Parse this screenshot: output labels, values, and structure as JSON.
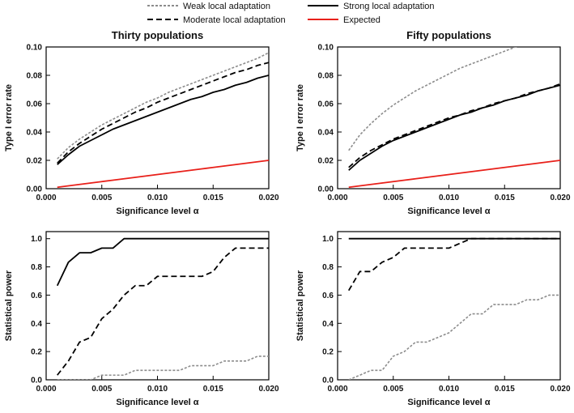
{
  "legend": {
    "position": "top",
    "entries": [
      {
        "label": "Weak local adaptation",
        "color": "#8c8c8c",
        "dash": "dotted"
      },
      {
        "label": "Strong local adaptation",
        "color": "#000000",
        "dash": "solid"
      },
      {
        "label": "Moderate local adaptation",
        "color": "#000000",
        "dash": "dashed"
      },
      {
        "label": "Expected",
        "color": "#e8201a",
        "dash": "solid"
      }
    ]
  },
  "chart_data": [
    {
      "type": "line",
      "title": "Thirty populations",
      "xlabel": "Significance level α",
      "ylabel": "Type I error rate",
      "xlim": [
        0,
        0.02
      ],
      "ylim": [
        0,
        0.1
      ],
      "xticks": [
        "0.000",
        "0.005",
        "0.010",
        "0.015",
        "0.020"
      ],
      "yticks": [
        "0.00",
        "0.02",
        "0.04",
        "0.06",
        "0.08",
        "0.10"
      ],
      "x": [
        0.001,
        0.002,
        0.003,
        0.004,
        0.005,
        0.006,
        0.007,
        0.008,
        0.009,
        0.01,
        0.011,
        0.012,
        0.013,
        0.014,
        0.015,
        0.016,
        0.017,
        0.018,
        0.019,
        0.02
      ],
      "series": [
        {
          "name": "Weak local adaptation",
          "values": [
            0.021,
            0.029,
            0.035,
            0.04,
            0.045,
            0.049,
            0.053,
            0.057,
            0.061,
            0.064,
            0.068,
            0.071,
            0.074,
            0.077,
            0.08,
            0.083,
            0.086,
            0.089,
            0.092,
            0.096
          ]
        },
        {
          "name": "Moderate local adaptation",
          "values": [
            0.018,
            0.026,
            0.032,
            0.037,
            0.042,
            0.046,
            0.05,
            0.054,
            0.057,
            0.061,
            0.064,
            0.067,
            0.07,
            0.073,
            0.076,
            0.079,
            0.082,
            0.084,
            0.087,
            0.089
          ]
        },
        {
          "name": "Strong local adaptation",
          "values": [
            0.017,
            0.024,
            0.03,
            0.034,
            0.038,
            0.042,
            0.045,
            0.048,
            0.051,
            0.054,
            0.057,
            0.06,
            0.063,
            0.065,
            0.068,
            0.07,
            0.073,
            0.075,
            0.078,
            0.08
          ]
        },
        {
          "name": "Expected",
          "values": [
            0.001,
            0.002,
            0.003,
            0.004,
            0.005,
            0.006,
            0.007,
            0.008,
            0.009,
            0.01,
            0.011,
            0.012,
            0.013,
            0.014,
            0.015,
            0.016,
            0.017,
            0.018,
            0.019,
            0.02
          ]
        }
      ]
    },
    {
      "type": "line",
      "title": "Fifty populations",
      "xlabel": "Significance level α",
      "ylabel": "Type I error rate",
      "xlim": [
        0,
        0.02
      ],
      "ylim": [
        0,
        0.1
      ],
      "xticks": [
        "0.000",
        "0.005",
        "0.010",
        "0.015",
        "0.020"
      ],
      "yticks": [
        "0.00",
        "0.02",
        "0.04",
        "0.06",
        "0.08",
        "0.10"
      ],
      "x": [
        0.001,
        0.002,
        0.003,
        0.004,
        0.005,
        0.006,
        0.007,
        0.008,
        0.009,
        0.01,
        0.011,
        0.012,
        0.013,
        0.014,
        0.015,
        0.016,
        0.017,
        0.018,
        0.019,
        0.02
      ],
      "series": [
        {
          "name": "Weak local adaptation",
          "values": [
            0.027,
            0.038,
            0.046,
            0.053,
            0.059,
            0.064,
            0.069,
            0.073,
            0.077,
            0.081,
            0.085,
            0.088,
            0.091,
            0.094,
            0.097,
            0.1,
            0.103,
            0.106,
            0.108,
            0.111
          ]
        },
        {
          "name": "Moderate local adaptation",
          "values": [
            0.015,
            0.022,
            0.027,
            0.031,
            0.035,
            0.038,
            0.041,
            0.044,
            0.047,
            0.05,
            0.052,
            0.055,
            0.057,
            0.06,
            0.062,
            0.064,
            0.067,
            0.069,
            0.071,
            0.074
          ]
        },
        {
          "name": "Strong local adaptation",
          "values": [
            0.013,
            0.02,
            0.025,
            0.03,
            0.034,
            0.037,
            0.04,
            0.043,
            0.046,
            0.049,
            0.052,
            0.054,
            0.057,
            0.059,
            0.062,
            0.064,
            0.066,
            0.069,
            0.071,
            0.073
          ]
        },
        {
          "name": "Expected",
          "values": [
            0.001,
            0.002,
            0.003,
            0.004,
            0.005,
            0.006,
            0.007,
            0.008,
            0.009,
            0.01,
            0.011,
            0.012,
            0.013,
            0.014,
            0.015,
            0.016,
            0.017,
            0.018,
            0.019,
            0.02
          ]
        }
      ]
    },
    {
      "type": "line",
      "title": "",
      "xlabel": "Significance level α",
      "ylabel": "Statistical power",
      "xlim": [
        0,
        0.02
      ],
      "ylim": [
        0,
        1.05
      ],
      "xticks": [
        "0.000",
        "0.005",
        "0.010",
        "0.015",
        "0.020"
      ],
      "yticks": [
        "0.0",
        "0.2",
        "0.4",
        "0.6",
        "0.8",
        "1.0"
      ],
      "x": [
        0.001,
        0.002,
        0.003,
        0.004,
        0.005,
        0.006,
        0.007,
        0.008,
        0.009,
        0.01,
        0.011,
        0.012,
        0.013,
        0.014,
        0.015,
        0.016,
        0.017,
        0.018,
        0.019,
        0.02
      ],
      "series": [
        {
          "name": "Weak local adaptation",
          "values": [
            0.0,
            0.0,
            0.0,
            0.0,
            0.033,
            0.033,
            0.033,
            0.067,
            0.067,
            0.067,
            0.067,
            0.067,
            0.1,
            0.1,
            0.1,
            0.133,
            0.133,
            0.133,
            0.167,
            0.167
          ]
        },
        {
          "name": "Moderate local adaptation",
          "values": [
            0.033,
            0.133,
            0.267,
            0.3,
            0.433,
            0.5,
            0.6,
            0.667,
            0.667,
            0.733,
            0.733,
            0.733,
            0.733,
            0.733,
            0.767,
            0.867,
            0.933,
            0.933,
            0.933,
            0.933
          ]
        },
        {
          "name": "Strong local adaptation",
          "values": [
            0.667,
            0.833,
            0.9,
            0.9,
            0.933,
            0.933,
            1.0,
            1.0,
            1.0,
            1.0,
            1.0,
            1.0,
            1.0,
            1.0,
            1.0,
            1.0,
            1.0,
            1.0,
            1.0,
            1.0
          ]
        }
      ]
    },
    {
      "type": "line",
      "title": "",
      "xlabel": "Significance level α",
      "ylabel": "Statistical power",
      "xlim": [
        0,
        0.02
      ],
      "ylim": [
        0,
        1.05
      ],
      "xticks": [
        "0.000",
        "0.005",
        "0.010",
        "0.015",
        "0.020"
      ],
      "yticks": [
        "0.0",
        "0.2",
        "0.4",
        "0.6",
        "0.8",
        "1.0"
      ],
      "x": [
        0.001,
        0.002,
        0.003,
        0.004,
        0.005,
        0.006,
        0.007,
        0.008,
        0.009,
        0.01,
        0.011,
        0.012,
        0.013,
        0.014,
        0.015,
        0.016,
        0.017,
        0.018,
        0.019,
        0.02
      ],
      "series": [
        {
          "name": "Weak local adaptation",
          "values": [
            0.0,
            0.033,
            0.067,
            0.067,
            0.167,
            0.2,
            0.267,
            0.267,
            0.3,
            0.333,
            0.4,
            0.467,
            0.467,
            0.533,
            0.533,
            0.533,
            0.567,
            0.567,
            0.6,
            0.6
          ]
        },
        {
          "name": "Moderate local adaptation",
          "values": [
            0.633,
            0.767,
            0.767,
            0.833,
            0.867,
            0.933,
            0.933,
            0.933,
            0.933,
            0.933,
            0.967,
            1.0,
            1.0,
            1.0,
            1.0,
            1.0,
            1.0,
            1.0,
            1.0,
            1.0
          ]
        },
        {
          "name": "Strong local adaptation",
          "values": [
            1.0,
            1.0,
            1.0,
            1.0,
            1.0,
            1.0,
            1.0,
            1.0,
            1.0,
            1.0,
            1.0,
            1.0,
            1.0,
            1.0,
            1.0,
            1.0,
            1.0,
            1.0,
            1.0,
            1.0
          ]
        }
      ]
    }
  ]
}
